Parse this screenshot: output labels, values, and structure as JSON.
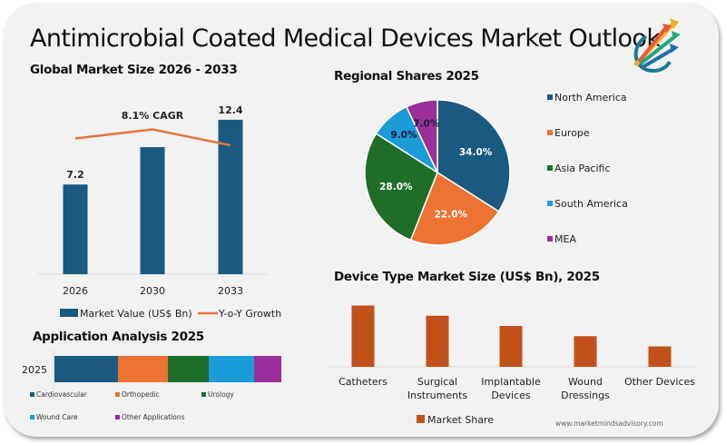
{
  "page": {
    "title": "Antimicrobial Coated Medical Devices Market Outlook",
    "source": "www.marketmindsadvisory.com",
    "logo_icon": "growth-arrows-logo-icon"
  },
  "colors": {
    "market_value": "#1a5a80",
    "growth_line": "#e8733a",
    "north_america": "#1a5a80",
    "europe": "#ed7333",
    "asia_pacific": "#1e6e2a",
    "south_america": "#1a9cd8",
    "mea": "#9a2e9a",
    "device_bar": "#c2501a"
  },
  "chart_data": [
    {
      "id": "global",
      "type": "bar",
      "title": "Global Market Size 2026 - 2033",
      "categories": [
        "2026",
        "2030",
        "2033"
      ],
      "series": [
        {
          "name": "Market Value (US$ Bn)",
          "values": [
            7.2,
            10.2,
            12.4
          ],
          "labels": [
            "7.2",
            "",
            "12.4"
          ]
        },
        {
          "name": "Y-o-Y Growth",
          "type": "line",
          "values": [
            7.9,
            8.3,
            7.6
          ]
        }
      ],
      "annotation": "8.1% CAGR",
      "xlabel": "",
      "ylabel": "",
      "ylim": [
        0,
        13
      ],
      "grid": false,
      "legend": "bottom"
    },
    {
      "id": "regional",
      "type": "pie",
      "title": "Regional Shares 2025",
      "categories": [
        "North America",
        "Europe",
        "Asia Pacific",
        "South America",
        "MEA"
      ],
      "values": [
        34.0,
        22.0,
        28.0,
        9.0,
        7.0
      ],
      "labels": [
        "34.0%",
        "22.0%",
        "28.0%",
        "9.0%",
        "7.0%"
      ],
      "legend": "right"
    },
    {
      "id": "application",
      "type": "bar",
      "orientation": "horizontal-stacked",
      "title": "Application Analysis 2025",
      "categories": [
        "2025"
      ],
      "series": [
        {
          "name": "Cardiovascular",
          "values": [
            28
          ]
        },
        {
          "name": "Orthopedic",
          "values": [
            22
          ]
        },
        {
          "name": "Urology",
          "values": [
            18
          ]
        },
        {
          "name": "Wound Care",
          "values": [
            20
          ]
        },
        {
          "name": "Other Applications",
          "values": [
            12
          ]
        }
      ],
      "unit": "%",
      "legend": "bottom"
    },
    {
      "id": "device",
      "type": "bar",
      "title": "Device Type Market Size (US$ Bn), 2025",
      "categories": [
        "Catheters",
        "Surgical Instruments",
        "Implantable Devices",
        "Wound Dressings",
        "Other Devices"
      ],
      "category_lines": [
        [
          "Catheters"
        ],
        [
          "Surgical",
          "Instruments"
        ],
        [
          "Implantable",
          "Devices"
        ],
        [
          "Wound",
          "Dressings"
        ],
        [
          "Other Devices"
        ]
      ],
      "series": [
        {
          "name": "Market Share",
          "values": [
            3.0,
            2.5,
            2.0,
            1.5,
            1.0
          ]
        }
      ],
      "ylim": [
        0,
        3.2
      ],
      "grid": false,
      "legend": "bottom"
    }
  ]
}
